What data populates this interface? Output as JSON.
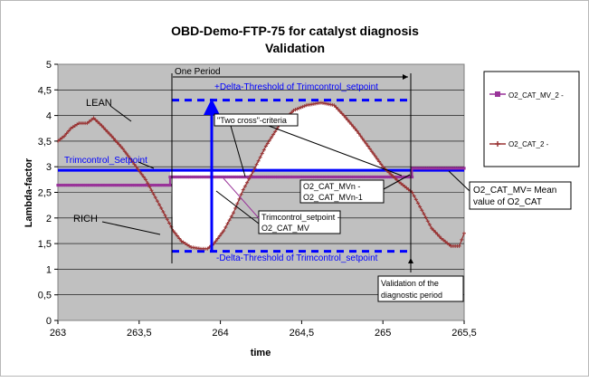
{
  "chart_data": {
    "type": "line",
    "title": "OBD-Demo-FTP-75 for catalyst diagnosis",
    "subtitle": "Validation",
    "xlabel": "time",
    "ylabel": "Lambda-factor",
    "xlim": [
      263,
      265.5
    ],
    "ylim": [
      0,
      5
    ],
    "x_ticks": [
      263,
      263.5,
      264,
      264.5,
      265,
      265.5
    ],
    "x_tick_labels": [
      "263",
      "263,5",
      "264",
      "264,5",
      "265",
      "265,5"
    ],
    "y_ticks": [
      0,
      0.5,
      1,
      1.5,
      2,
      2.5,
      3,
      3.5,
      4,
      4.5,
      5
    ],
    "y_tick_labels": [
      "0",
      "0,5",
      "1",
      "1,5",
      "2",
      "2,5",
      "3",
      "3,5",
      "4",
      "4,5",
      "5"
    ],
    "grid": "horizontal",
    "plot_background": "#c0c0c0",
    "legend_position": "right",
    "series": [
      {
        "name": "O2_CAT_MV_2 -",
        "color": "#993399",
        "marker": "square",
        "points": [
          [
            263,
            2.64
          ],
          [
            263.69,
            2.64
          ],
          [
            263.69,
            2.8
          ],
          [
            265.18,
            2.8
          ],
          [
            265.18,
            2.97
          ],
          [
            265.5,
            2.97
          ]
        ]
      },
      {
        "name": "O2_CAT_2 -",
        "color": "#993333",
        "marker": "plus",
        "points": [
          [
            263,
            3.5
          ],
          [
            263.04,
            3.6
          ],
          [
            263.08,
            3.75
          ],
          [
            263.13,
            3.85
          ],
          [
            263.18,
            3.85
          ],
          [
            263.22,
            3.95
          ],
          [
            263.27,
            3.8
          ],
          [
            263.33,
            3.6
          ],
          [
            263.4,
            3.35
          ],
          [
            263.47,
            3.05
          ],
          [
            263.54,
            2.75
          ],
          [
            263.6,
            2.4
          ],
          [
            263.66,
            2.05
          ],
          [
            263.71,
            1.75
          ],
          [
            263.76,
            1.55
          ],
          [
            263.82,
            1.43
          ],
          [
            263.88,
            1.4
          ],
          [
            263.92,
            1.4
          ],
          [
            263.96,
            1.5
          ],
          [
            264.02,
            1.75
          ],
          [
            264.08,
            2.1
          ],
          [
            264.14,
            2.55
          ],
          [
            264.2,
            2.9
          ],
          [
            264.28,
            3.4
          ],
          [
            264.36,
            3.8
          ],
          [
            264.45,
            4.1
          ],
          [
            264.53,
            4.2
          ],
          [
            264.62,
            4.25
          ],
          [
            264.7,
            4.2
          ],
          [
            264.76,
            4.0
          ],
          [
            264.84,
            3.7
          ],
          [
            264.92,
            3.35
          ],
          [
            265.0,
            3.0
          ],
          [
            265.1,
            2.7
          ],
          [
            265.18,
            2.5
          ],
          [
            265.24,
            2.15
          ],
          [
            265.3,
            1.8
          ],
          [
            265.36,
            1.6
          ],
          [
            265.42,
            1.45
          ],
          [
            265.47,
            1.45
          ],
          [
            265.5,
            1.7
          ]
        ]
      }
    ],
    "reference_lines": [
      {
        "name": "Trimcontrol_Setpoint",
        "y": 2.93,
        "color": "#0000ff",
        "style": "solid"
      },
      {
        "name": "+Delta-Threshold of Trimcontrol_setpoint",
        "y": 4.3,
        "color": "#0000ff",
        "style": "dashed"
      },
      {
        "name": "-Delta-Threshold of Trimcontrol_setpoint",
        "y": 1.35,
        "color": "#0000ff",
        "style": "dashed"
      }
    ],
    "annotations": {
      "lean": "LEAN",
      "rich": "RICH",
      "one_period": "One Period",
      "plus_delta": "+Delta-Threshold of Trimcontrol_setpoint",
      "minus_delta": "-Delta-Threshold of Trimcontrol_setpoint",
      "setpoint": "Trimcontrol_Setpoint",
      "two_cross": "\"Two cross\"-criteria",
      "diff_line1": "Trimcontrol_setpoint -",
      "diff_line2": "O2_CAT_MV",
      "mv_line1": "O2_CAT_MVn -",
      "mv_line2": "O2_CAT_MVn-1",
      "valid_line1": "Validation of the",
      "valid_line2": "diagnostic period",
      "mean_line1": "O2_CAT_MV= Mean",
      "mean_line2": "value of O2_CAT"
    }
  }
}
